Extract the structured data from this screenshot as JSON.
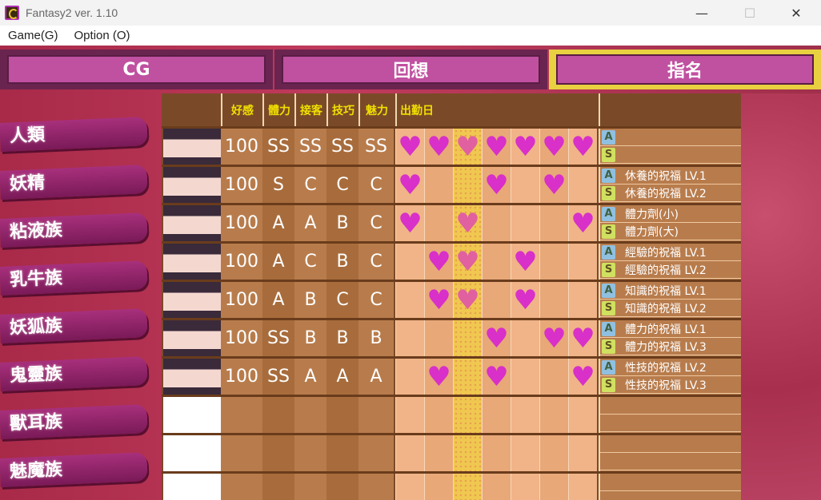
{
  "window": {
    "title": "Fantasy2   ver. 1.10",
    "minimize": "—",
    "maximize": "☐",
    "close": "✕"
  },
  "menu": [
    "Game(G)",
    "Option (O)"
  ],
  "tabs": [
    {
      "label": "CG",
      "selected": false
    },
    {
      "label": "回想",
      "selected": false
    },
    {
      "label": "指名",
      "selected": true
    }
  ],
  "sidebar": [
    "人類",
    "妖精",
    "粘液族",
    "乳牛族",
    "妖狐族",
    "鬼靈族",
    "獸耳族",
    "魅魔族"
  ],
  "headers": {
    "affection": "好感",
    "stamina": "體力",
    "service": "接客",
    "skill": "技巧",
    "charm": "魅力",
    "days": "出勤日"
  },
  "highlight_day": 3,
  "colors": {
    "heart": "#d830c8",
    "tab_selected_border": "#e8d040",
    "header_text": "#f0e000"
  },
  "rows": [
    {
      "aff": "100",
      "stats": [
        "SS",
        "SS",
        "SS",
        "SS"
      ],
      "days": [
        1,
        2,
        3,
        4,
        5,
        6,
        7
      ],
      "skill_a": "",
      "skill_s": ""
    },
    {
      "aff": "100",
      "stats": [
        "S",
        "C",
        "C",
        "C"
      ],
      "days": [
        1,
        4,
        6
      ],
      "skill_a": "休養的祝福 LV.1",
      "skill_s": "休養的祝福 LV.2"
    },
    {
      "aff": "100",
      "stats": [
        "A",
        "A",
        "B",
        "C"
      ],
      "days": [
        1,
        3,
        7
      ],
      "skill_a": "體力劑(小)",
      "skill_s": "體力劑(大)"
    },
    {
      "aff": "100",
      "stats": [
        "A",
        "C",
        "B",
        "C"
      ],
      "days": [
        2,
        3,
        5
      ],
      "skill_a": "經驗的祝福 LV.1",
      "skill_s": "經驗的祝福 LV.2"
    },
    {
      "aff": "100",
      "stats": [
        "A",
        "B",
        "C",
        "C"
      ],
      "days": [
        2,
        3,
        5
      ],
      "skill_a": "知識的祝福 LV.1",
      "skill_s": "知識的祝福 LV.2"
    },
    {
      "aff": "100",
      "stats": [
        "SS",
        "B",
        "B",
        "B"
      ],
      "days": [
        4,
        6,
        7
      ],
      "skill_a": "體力的祝福 LV.1",
      "skill_s": "體力的祝福 LV.3"
    },
    {
      "aff": "100",
      "stats": [
        "SS",
        "A",
        "A",
        "A"
      ],
      "days": [
        2,
        4,
        7
      ],
      "skill_a": "性技的祝福 LV.2",
      "skill_s": "性技的祝福 LV.3"
    },
    null,
    null,
    null
  ],
  "badges": {
    "a": "A",
    "s": "S"
  },
  "heart_glyph": "♥"
}
